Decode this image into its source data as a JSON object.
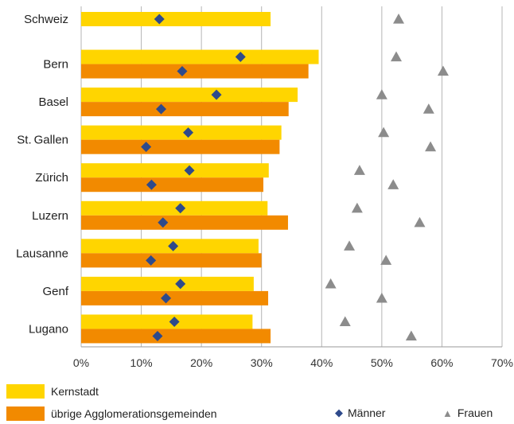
{
  "chart_data": {
    "type": "bar",
    "orientation": "horizontal",
    "categories": [
      "Schweiz",
      "Bern",
      "Basel",
      "St. Gallen",
      "Zürich",
      "Luzern",
      "Lausanne",
      "Genf",
      "Lugano"
    ],
    "series": [
      {
        "name": "Kernstadt",
        "kind": "bar",
        "color": "#FFD500",
        "values": [
          31.5,
          39.5,
          36.0,
          33.3,
          31.2,
          31.0,
          29.5,
          28.7,
          28.5
        ]
      },
      {
        "name": "übrige Agglomerationsgemeinden",
        "kind": "bar",
        "color": "#F28A00",
        "values": [
          null,
          37.8,
          34.5,
          33.0,
          30.3,
          34.4,
          30.0,
          31.1,
          31.5
        ]
      },
      {
        "name": "Männer",
        "kind": "marker",
        "marker": "diamond",
        "color": "#2E4A8B",
        "kernstadt": [
          13.0,
          26.5,
          22.5,
          17.8,
          18.0,
          16.5,
          15.3,
          16.5,
          15.5
        ],
        "agglo": [
          null,
          16.8,
          13.3,
          10.8,
          11.7,
          13.6,
          11.6,
          14.1,
          12.7
        ]
      },
      {
        "name": "Frauen",
        "kind": "marker",
        "marker": "triangle",
        "color": "#8C8C8C",
        "kernstadt": [
          52.8,
          52.4,
          50.0,
          50.3,
          46.3,
          45.9,
          44.6,
          41.5,
          43.9
        ],
        "agglo": [
          null,
          60.2,
          57.8,
          58.1,
          51.9,
          56.3,
          50.7,
          50.0,
          54.9
        ]
      }
    ],
    "xlim": [
      0,
      70
    ],
    "xticks": [
      "0%",
      "10%",
      "20%",
      "30%",
      "40%",
      "50%",
      "60%",
      "70%"
    ],
    "grid": true,
    "legend_position": "bottom"
  }
}
